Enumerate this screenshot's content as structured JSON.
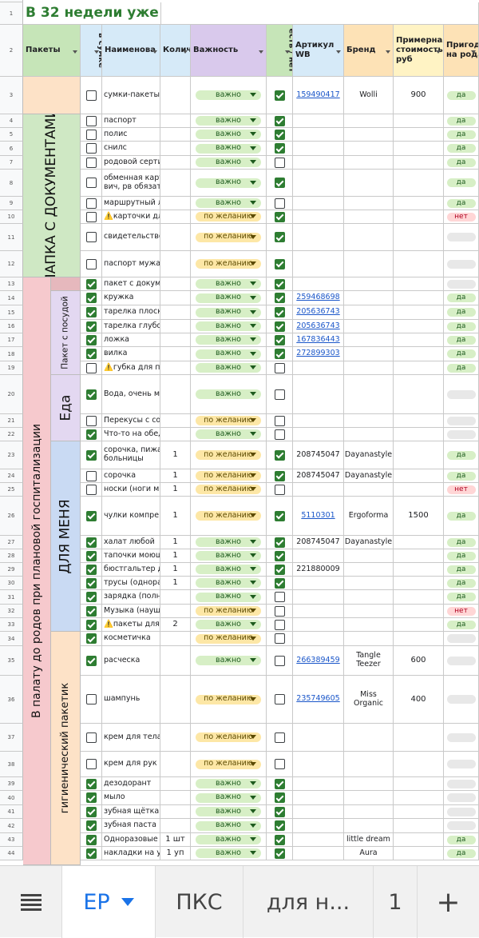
{
  "title": "В 32 недели уже д",
  "headers": {
    "packets": "Пакеты",
    "in_bag": "в сумке",
    "name": "Наименова",
    "qty": "Количество",
    "importance": "Важность",
    "have": "есть / нет",
    "article": "Артикул WB",
    "brand": "Бренд",
    "cost": "Примерная стоимость, руб",
    "suitable": "Пригодилось на родах"
  },
  "group_labels": {
    "docs": "ПАПКА С ДОКУМЕНТАМИ",
    "ward": "В палату до родов при плановой госпитализации",
    "dishes": "Пакет с посудой",
    "food": "Еда",
    "for_me": "ДЛЯ МЕНЯ",
    "hygiene": "гигиенический пакетик"
  },
  "importance_labels": {
    "imp": "важно",
    "opt": "по желанию"
  },
  "rows": [
    {
      "n": "3",
      "inbag": false,
      "name": "сумки-пакеты",
      "qty": "",
      "imp": "imp",
      "have": true,
      "art": "159490417",
      "link": true,
      "brand": "Wolli",
      "cost": "900",
      "suit": "да"
    },
    {
      "n": "4",
      "inbag": false,
      "name": "паспорт",
      "qty": "",
      "imp": "imp",
      "have": true,
      "art": "",
      "link": false,
      "brand": "",
      "cost": "",
      "suit": "да"
    },
    {
      "n": "5",
      "inbag": false,
      "name": "полис",
      "qty": "",
      "imp": "imp",
      "have": true,
      "art": "",
      "link": false,
      "brand": "",
      "cost": "",
      "suit": "да"
    },
    {
      "n": "6",
      "inbag": false,
      "name": "снилс",
      "qty": "",
      "imp": "imp",
      "have": true,
      "art": "",
      "link": false,
      "brand": "",
      "cost": "",
      "suit": "да"
    },
    {
      "n": "7",
      "inbag": false,
      "name": "родовой серти",
      "qty": "",
      "imp": "imp",
      "have": false,
      "art": "",
      "link": false,
      "brand": "",
      "cost": "",
      "suit": "да"
    },
    {
      "n": "8",
      "inbag": false,
      "name": "обменная карт\nвич, рв обязате",
      "qty": "",
      "imp": "imp",
      "have": true,
      "art": "",
      "link": false,
      "brand": "",
      "cost": "",
      "suit": "да"
    },
    {
      "n": "9",
      "inbag": false,
      "name": "маршрутный л",
      "qty": "",
      "imp": "imp",
      "have": false,
      "art": "",
      "link": false,
      "brand": "",
      "cost": "",
      "suit": "да"
    },
    {
      "n": "10",
      "inbag": false,
      "name": "⚠️карточки дл",
      "qty": "",
      "imp": "opt",
      "have": true,
      "art": "",
      "link": false,
      "brand": "",
      "cost": "",
      "suit": "нет"
    },
    {
      "n": "11",
      "inbag": false,
      "name": "свидетельство",
      "qty": "",
      "imp": "opt",
      "have": true,
      "art": "",
      "link": false,
      "brand": "",
      "cost": "",
      "suit": ""
    },
    {
      "n": "12",
      "inbag": false,
      "name": "паспорт мужа",
      "qty": "",
      "imp": "opt",
      "have": true,
      "art": "",
      "link": false,
      "brand": "",
      "cost": "",
      "suit": ""
    },
    {
      "n": "13",
      "inbag": true,
      "name": "пакет с докум",
      "qty": "",
      "imp": "imp",
      "have": true,
      "art": "",
      "link": false,
      "brand": "",
      "cost": "",
      "suit": ""
    },
    {
      "n": "14",
      "inbag": true,
      "name": "кружка",
      "qty": "",
      "imp": "imp",
      "have": true,
      "art": "259468698",
      "link": true,
      "brand": "",
      "cost": "",
      "suit": "да"
    },
    {
      "n": "15",
      "inbag": true,
      "name": "тарелка плоск",
      "qty": "",
      "imp": "imp",
      "have": true,
      "art": "205636743",
      "link": true,
      "brand": "",
      "cost": "",
      "suit": "да"
    },
    {
      "n": "16",
      "inbag": true,
      "name": "тарелка глубо",
      "qty": "",
      "imp": "imp",
      "have": true,
      "art": "205636743",
      "link": true,
      "brand": "",
      "cost": "",
      "suit": "да"
    },
    {
      "n": "17",
      "inbag": true,
      "name": "ложка",
      "qty": "",
      "imp": "imp",
      "have": true,
      "art": "167836443",
      "link": true,
      "brand": "",
      "cost": "",
      "suit": "да"
    },
    {
      "n": "18",
      "inbag": true,
      "name": "вилка",
      "qty": "",
      "imp": "imp",
      "have": true,
      "art": "272899303",
      "link": true,
      "brand": "",
      "cost": "",
      "suit": "да"
    },
    {
      "n": "19",
      "inbag": false,
      "name": "⚠️губка для п",
      "qty": "",
      "imp": "imp",
      "have": false,
      "art": "",
      "link": false,
      "brand": "",
      "cost": "",
      "suit": "да"
    },
    {
      "n": "20",
      "inbag": true,
      "name": "Вода, очень м",
      "qty": "",
      "imp": "imp",
      "have": false,
      "art": "",
      "link": false,
      "brand": "",
      "cost": "",
      "suit": ""
    },
    {
      "n": "21",
      "inbag": false,
      "name": "Перекусы с со",
      "qty": "",
      "imp": "opt",
      "have": false,
      "art": "",
      "link": false,
      "brand": "",
      "cost": "",
      "suit": ""
    },
    {
      "n": "22",
      "inbag": true,
      "name": "Что-то на обед",
      "qty": "",
      "imp": "imp",
      "have": false,
      "art": "",
      "link": false,
      "brand": "",
      "cost": "",
      "suit": ""
    },
    {
      "n": "23",
      "inbag": true,
      "name": "сорочка, пижа\nбольницы",
      "qty": "1",
      "imp": "opt",
      "have": true,
      "art": "208745047",
      "link": false,
      "brand": "Dayanastyle",
      "cost": "",
      "suit": "да"
    },
    {
      "n": "24",
      "inbag": false,
      "name": "сорочка",
      "qty": "1",
      "imp": "opt",
      "have": true,
      "art": "208745047",
      "link": false,
      "brand": "Dayanastyle",
      "cost": "",
      "suit": "да"
    },
    {
      "n": "25",
      "inbag": false,
      "name": "носки (ноги м",
      "qty": "1",
      "imp": "opt",
      "have": false,
      "art": "",
      "link": false,
      "brand": "",
      "cost": "",
      "suit": "нет"
    },
    {
      "n": "26",
      "inbag": true,
      "name": "чулки компре",
      "qty": "1",
      "imp": "opt",
      "have": true,
      "art": "5110301",
      "link": true,
      "brand": "Ergoforma",
      "cost": "1500",
      "suit": "да"
    },
    {
      "n": "27",
      "inbag": true,
      "name": "халат любой",
      "qty": "1",
      "imp": "imp",
      "have": true,
      "art": "208745047",
      "link": false,
      "brand": "Dayanastyle",
      "cost": "",
      "suit": "да"
    },
    {
      "n": "28",
      "inbag": true,
      "name": "тапочки моющ",
      "qty": "1",
      "imp": "imp",
      "have": true,
      "art": "",
      "link": false,
      "brand": "",
      "cost": "",
      "suit": "да"
    },
    {
      "n": "29",
      "inbag": true,
      "name": "бюстгальтер д",
      "qty": "1",
      "imp": "imp",
      "have": true,
      "art": "221880009",
      "link": false,
      "brand": "",
      "cost": "",
      "suit": "да"
    },
    {
      "n": "30",
      "inbag": true,
      "name": "трусы (однора",
      "qty": "1",
      "imp": "imp",
      "have": true,
      "art": "",
      "link": false,
      "brand": "",
      "cost": "",
      "suit": "да"
    },
    {
      "n": "31",
      "inbag": true,
      "name": "зарядка (полн",
      "qty": "",
      "imp": "imp",
      "have": false,
      "art": "",
      "link": false,
      "brand": "",
      "cost": "",
      "suit": "да"
    },
    {
      "n": "32",
      "inbag": true,
      "name": "Музыка (науш",
      "qty": "",
      "imp": "opt",
      "have": false,
      "art": "",
      "link": false,
      "brand": "",
      "cost": "",
      "suit": "нет"
    },
    {
      "n": "33",
      "inbag": true,
      "name": "⚠️пакеты для",
      "qty": "2",
      "imp": "imp",
      "have": false,
      "art": "",
      "link": false,
      "brand": "",
      "cost": "",
      "suit": "да"
    },
    {
      "n": "34",
      "inbag": true,
      "name": "косметичка",
      "qty": "",
      "imp": "opt",
      "have": false,
      "art": "",
      "link": false,
      "brand": "",
      "cost": "",
      "suit": ""
    },
    {
      "n": "35",
      "inbag": true,
      "name": "расческа",
      "qty": "",
      "imp": "imp",
      "have": false,
      "art": "266389459",
      "link": true,
      "brand": "Tangle\nTeezer",
      "cost": "600",
      "suit": ""
    },
    {
      "n": "36",
      "inbag": false,
      "name": "шампунь",
      "qty": "",
      "imp": "opt",
      "have": false,
      "art": "235749605",
      "link": true,
      "brand": "Miss\nOrganic",
      "cost": "400",
      "suit": ""
    },
    {
      "n": "37",
      "inbag": false,
      "name": "крем для тела",
      "qty": "",
      "imp": "opt",
      "have": false,
      "art": "",
      "link": false,
      "brand": "",
      "cost": "",
      "suit": ""
    },
    {
      "n": "38",
      "inbag": false,
      "name": "крем для рук у",
      "qty": "",
      "imp": "opt",
      "have": false,
      "art": "",
      "link": false,
      "brand": "",
      "cost": "",
      "suit": ""
    },
    {
      "n": "39",
      "inbag": true,
      "name": "дезодорант",
      "qty": "",
      "imp": "imp",
      "have": true,
      "art": "",
      "link": false,
      "brand": "",
      "cost": "",
      "suit": ""
    },
    {
      "n": "40",
      "inbag": true,
      "name": "мыло",
      "qty": "",
      "imp": "imp",
      "have": true,
      "art": "",
      "link": false,
      "brand": "",
      "cost": "",
      "suit": ""
    },
    {
      "n": "41",
      "inbag": true,
      "name": "зубная щётка",
      "qty": "",
      "imp": "imp",
      "have": true,
      "art": "",
      "link": false,
      "brand": "",
      "cost": "",
      "suit": ""
    },
    {
      "n": "42",
      "inbag": true,
      "name": "зубная паста",
      "qty": "",
      "imp": "imp",
      "have": true,
      "art": "",
      "link": false,
      "brand": "",
      "cost": "",
      "suit": ""
    },
    {
      "n": "43",
      "inbag": true,
      "name": "Одноразовые",
      "qty": "1 шт",
      "imp": "imp",
      "have": true,
      "art": "",
      "link": false,
      "brand": "little dream",
      "cost": "",
      "suit": "да"
    },
    {
      "n": "44",
      "inbag": true,
      "name": "накладки на у",
      "qty": "1 уп",
      "imp": "imp",
      "have": true,
      "art": "",
      "link": false,
      "brand": "Aura",
      "cost": "",
      "suit": "да"
    }
  ],
  "tabs": {
    "menu_icon": "menu-icon",
    "active": "ЕР",
    "t2": "ПКС",
    "t3": "для н...",
    "t4": "1",
    "add": "+"
  }
}
